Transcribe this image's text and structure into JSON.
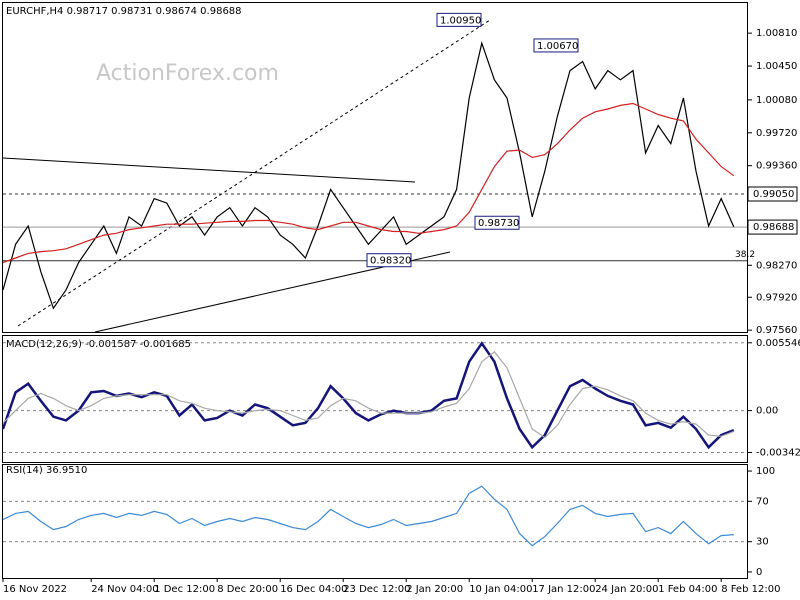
{
  "watermark": "ActionForex.com",
  "chart_data": [
    {
      "type": "line",
      "title": "EURCHF,H4 0.98717 0.98731 0.98674 0.98688",
      "categories": [
        "16 Nov 2022",
        null,
        null,
        null,
        null,
        null,
        null,
        "24 Nov 04:00",
        null,
        null,
        null,
        null,
        "1 Dec 12:00",
        null,
        null,
        null,
        null,
        "8 Dec 20:00",
        null,
        null,
        null,
        null,
        "16 Dec 04:00",
        null,
        null,
        null,
        null,
        "23 Dec 12:00",
        null,
        null,
        null,
        null,
        "2 Jan 20:00",
        null,
        null,
        null,
        null,
        "10 Jan 04:00",
        null,
        null,
        null,
        null,
        "17 Jan 12:00",
        null,
        null,
        null,
        null,
        "24 Jan 20:00",
        null,
        null,
        null,
        null,
        "1 Feb 04:00",
        null,
        null,
        null,
        null,
        "8 Feb 12:00",
        null
      ],
      "series": [
        {
          "name": "EURCHF",
          "color": "#000000",
          "values": [
            0.98,
            0.985,
            0.987,
            0.982,
            0.978,
            0.98,
            0.983,
            0.985,
            0.987,
            0.984,
            0.988,
            0.987,
            0.99,
            0.9895,
            0.987,
            0.988,
            0.986,
            0.988,
            0.989,
            0.987,
            0.989,
            0.988,
            0.986,
            0.985,
            0.9835,
            0.987,
            0.991,
            0.989,
            0.987,
            0.985,
            0.9865,
            0.988,
            0.985,
            0.986,
            0.987,
            0.988,
            0.991,
            1.001,
            1.007,
            1.003,
            1.001,
            0.995,
            0.988,
            0.993,
            0.999,
            1.004,
            1.005,
            1.002,
            1.004,
            1.003,
            1.004,
            0.995,
            0.998,
            0.996,
            1.001,
            0.993,
            0.987,
            0.99,
            0.9869
          ]
        },
        {
          "name": "MA",
          "color": "#d42020",
          "values": [
            0.983,
            0.9835,
            0.984,
            0.9842,
            0.9843,
            0.9845,
            0.985,
            0.9855,
            0.986,
            0.9862,
            0.9866,
            0.9868,
            0.987,
            0.9872,
            0.9872,
            0.9872,
            0.9873,
            0.9874,
            0.9875,
            0.9875,
            0.9876,
            0.9876,
            0.9874,
            0.9872,
            0.9868,
            0.9866,
            0.987,
            0.9874,
            0.9874,
            0.987,
            0.9866,
            0.9864,
            0.9864,
            0.9862,
            0.9864,
            0.9866,
            0.987,
            0.9885,
            0.991,
            0.9935,
            0.9952,
            0.9953,
            0.9945,
            0.9948,
            0.996,
            0.9975,
            0.9988,
            0.9995,
            0.9998,
            1.0002,
            1.0004,
            0.9998,
            0.9992,
            0.9988,
            0.9985,
            0.9965,
            0.995,
            0.9935,
            0.9925
          ]
        }
      ],
      "ylim": [
        0.9754,
        1.0114
      ],
      "yticks": [
        {
          "value": 1.0081,
          "label": "1.00810"
        },
        {
          "value": 1.0045,
          "label": "1.00450"
        },
        {
          "value": 1.0008,
          "label": "1.00080"
        },
        {
          "value": 0.9972,
          "label": "0.99720"
        },
        {
          "value": 0.9936,
          "label": "0.99360"
        },
        {
          "value": 0.9827,
          "label": "0.98270"
        },
        {
          "value": 0.9792,
          "label": "0.97920"
        },
        {
          "value": 0.9756,
          "label": "0.97560"
        }
      ],
      "levels": [
        {
          "value": 0.9905,
          "label": "0.99050",
          "style": "dashed"
        },
        {
          "value": 0.98688,
          "label": "0.98688",
          "style": "solid"
        }
      ],
      "fib_text": "38.2",
      "fib_price": 0.9832,
      "annotations": [
        {
          "text": "1.00950",
          "value": 1.0095
        },
        {
          "text": "1.00670",
          "value": 1.0067
        },
        {
          "text": "0.98730",
          "value": 0.9873
        },
        {
          "text": "0.98320",
          "value": 0.9832
        }
      ]
    },
    {
      "type": "line",
      "title": "MACD(12,26,9) -0.001587 -0.001685",
      "series": [
        {
          "name": "MACD",
          "color": "#14147a",
          "values": [
            -0.0015,
            0.0015,
            0.0022,
            0.0008,
            -0.0005,
            -0.0008,
            0,
            0.0015,
            0.0016,
            0.0012,
            0.0014,
            0.0011,
            0.0015,
            0.0012,
            -0.0004,
            0.0005,
            -0.0008,
            -0.0006,
            0,
            -0.0004,
            0.0005,
            0.0002,
            -0.0005,
            -0.0012,
            -0.001,
            0.0002,
            0.002,
            0.001,
            -0.0002,
            -0.0008,
            -0.0003,
            0,
            -0.0002,
            -0.0002,
            0,
            0.0008,
            0.001,
            0.004,
            0.0055,
            0.004,
            0.001,
            -0.0015,
            -0.003,
            -0.002,
            0,
            0.002,
            0.0025,
            0.0018,
            0.0012,
            0.0008,
            0.0005,
            -0.0012,
            -0.001,
            -0.0014,
            -0.0005,
            -0.0015,
            -0.003,
            -0.002,
            -0.0016
          ]
        },
        {
          "name": "Signal",
          "color": "#a8a8a8",
          "values": [
            -0.001,
            0,
            0.001,
            0.0014,
            0.001,
            0.0004,
            0,
            0.0004,
            0.001,
            0.0012,
            0.0013,
            0.0013,
            0.0013,
            0.0013,
            0.0008,
            0.0006,
            0.0002,
            0,
            -0.0001,
            -0.0002,
            0,
            0.0001,
            0,
            -0.0004,
            -0.0008,
            -0.0006,
            0.0004,
            0.001,
            0.0008,
            0.0002,
            -0.0002,
            -0.0002,
            -0.0002,
            -0.0002,
            -0.0001,
            0.0003,
            0.0006,
            0.0018,
            0.004,
            0.0048,
            0.0035,
            0.001,
            -0.0015,
            -0.0022,
            -0.0012,
            0.0005,
            0.0018,
            0.002,
            0.0017,
            0.0012,
            0.0008,
            -0.0002,
            -0.0008,
            -0.0011,
            -0.0009,
            -0.0011,
            -0.002,
            -0.0021,
            -0.0017
          ]
        }
      ],
      "ylim": [
        -0.0042,
        0.0061
      ],
      "yticks": [
        0.005546,
        {
          "value": 0,
          "label": "0.00"
        },
        -0.003423
      ],
      "grid": true
    },
    {
      "type": "line",
      "title": "RSI(14) 36.9510",
      "series": [
        {
          "name": "RSI",
          "color": "#3c8ad8",
          "values": [
            52,
            58,
            60,
            50,
            42,
            45,
            52,
            56,
            58,
            54,
            58,
            56,
            60,
            57,
            48,
            53,
            46,
            50,
            53,
            50,
            54,
            52,
            48,
            44,
            42,
            50,
            62,
            55,
            48,
            44,
            47,
            52,
            46,
            48,
            50,
            54,
            58,
            78,
            85,
            72,
            62,
            38,
            26,
            35,
            48,
            62,
            66,
            58,
            55,
            57,
            58,
            40,
            44,
            38,
            50,
            38,
            28,
            36,
            37
          ]
        }
      ],
      "ylim": [
        -6,
        106
      ],
      "yticks": [
        100,
        70,
        30,
        0
      ],
      "gridlines": [
        70,
        30
      ]
    }
  ]
}
